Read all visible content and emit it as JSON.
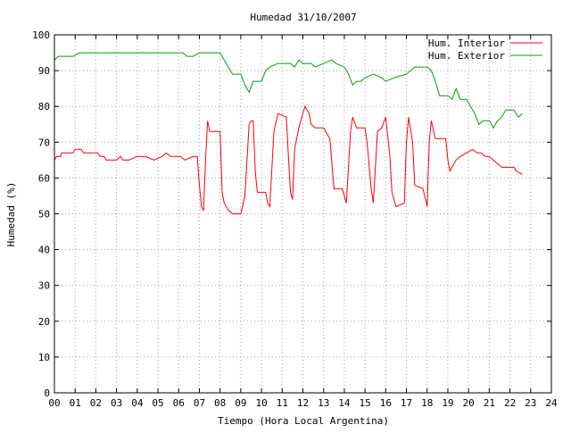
{
  "chart_data": {
    "type": "line",
    "title": "Humedad 31/10/2007",
    "xlabel": "Tiempo (Hora Local Argentina)",
    "ylabel": "Humedad (%)",
    "xlim": [
      0,
      24
    ],
    "ylim": [
      0,
      100
    ],
    "xticks": [
      "00",
      "01",
      "02",
      "03",
      "04",
      "05",
      "06",
      "07",
      "08",
      "09",
      "10",
      "11",
      "12",
      "13",
      "14",
      "15",
      "16",
      "17",
      "18",
      "19",
      "20",
      "21",
      "22",
      "23",
      "24"
    ],
    "yticks": [
      "0",
      "10",
      "20",
      "30",
      "40",
      "50",
      "60",
      "70",
      "80",
      "90",
      "100"
    ],
    "grid": true,
    "legend_position": "top-right",
    "series": [
      {
        "name": "Hum. Interior",
        "color": "#ff0000",
        "points": [
          [
            0,
            65
          ],
          [
            0.1,
            66
          ],
          [
            0.3,
            66
          ],
          [
            0.35,
            67
          ],
          [
            0.6,
            67
          ],
          [
            0.9,
            67
          ],
          [
            1.0,
            68
          ],
          [
            1.3,
            68
          ],
          [
            1.4,
            67
          ],
          [
            2.1,
            67
          ],
          [
            2.2,
            66
          ],
          [
            2.4,
            66
          ],
          [
            2.5,
            65
          ],
          [
            3.0,
            65
          ],
          [
            3.2,
            66
          ],
          [
            3.3,
            65
          ],
          [
            3.6,
            65
          ],
          [
            4.0,
            66
          ],
          [
            4.4,
            66
          ],
          [
            4.8,
            65
          ],
          [
            5.2,
            66
          ],
          [
            5.4,
            67
          ],
          [
            5.6,
            66
          ],
          [
            6.1,
            66
          ],
          [
            6.3,
            65
          ],
          [
            6.7,
            66
          ],
          [
            6.9,
            66
          ],
          [
            7.0,
            58
          ],
          [
            7.1,
            52
          ],
          [
            7.2,
            51
          ],
          [
            7.3,
            65
          ],
          [
            7.4,
            76
          ],
          [
            7.5,
            73
          ],
          [
            7.8,
            73
          ],
          [
            8.0,
            73
          ],
          [
            8.1,
            56
          ],
          [
            8.2,
            53
          ],
          [
            8.4,
            51
          ],
          [
            8.6,
            50
          ],
          [
            9.0,
            50
          ],
          [
            9.2,
            55
          ],
          [
            9.4,
            75
          ],
          [
            9.5,
            76
          ],
          [
            9.6,
            76
          ],
          [
            9.7,
            62
          ],
          [
            9.8,
            56
          ],
          [
            10.2,
            56
          ],
          [
            10.3,
            53
          ],
          [
            10.4,
            52
          ],
          [
            10.6,
            73
          ],
          [
            10.8,
            78
          ],
          [
            11.2,
            77
          ],
          [
            11.3,
            66
          ],
          [
            11.4,
            56
          ],
          [
            11.5,
            54
          ],
          [
            11.6,
            68
          ],
          [
            11.8,
            74
          ],
          [
            12.0,
            78
          ],
          [
            12.1,
            80
          ],
          [
            12.3,
            78
          ],
          [
            12.4,
            75
          ],
          [
            12.6,
            74
          ],
          [
            13.0,
            74
          ],
          [
            13.1,
            73
          ],
          [
            13.3,
            71
          ],
          [
            13.5,
            57
          ],
          [
            13.9,
            57
          ],
          [
            14.1,
            53
          ],
          [
            14.3,
            73
          ],
          [
            14.4,
            77
          ],
          [
            14.6,
            74
          ],
          [
            15.0,
            74
          ],
          [
            15.1,
            70
          ],
          [
            15.3,
            57
          ],
          [
            15.4,
            53
          ],
          [
            15.6,
            73
          ],
          [
            15.8,
            74
          ],
          [
            16.0,
            77
          ],
          [
            16.2,
            66
          ],
          [
            16.3,
            56
          ],
          [
            16.5,
            52
          ],
          [
            16.9,
            53
          ],
          [
            17.0,
            70
          ],
          [
            17.1,
            77
          ],
          [
            17.3,
            70
          ],
          [
            17.4,
            58
          ],
          [
            17.8,
            57
          ],
          [
            18.0,
            52
          ],
          [
            18.1,
            70
          ],
          [
            18.2,
            76
          ],
          [
            18.4,
            71
          ],
          [
            18.9,
            71
          ],
          [
            19.0,
            65
          ],
          [
            19.1,
            62
          ],
          [
            19.4,
            65
          ],
          [
            19.6,
            66
          ],
          [
            19.9,
            67
          ],
          [
            20.2,
            68
          ],
          [
            20.4,
            67
          ],
          [
            20.6,
            67
          ],
          [
            20.8,
            66
          ],
          [
            21.0,
            66
          ],
          [
            21.2,
            65
          ],
          [
            21.4,
            64
          ],
          [
            21.6,
            63
          ],
          [
            22.2,
            63
          ],
          [
            22.3,
            62
          ],
          [
            22.6,
            61
          ]
        ]
      },
      {
        "name": "Hum. Exterior",
        "color": "#00a000",
        "points": [
          [
            0,
            93
          ],
          [
            0.2,
            94
          ],
          [
            0.9,
            94
          ],
          [
            1.2,
            95
          ],
          [
            2.0,
            95
          ],
          [
            4.0,
            95
          ],
          [
            6.2,
            95
          ],
          [
            6.4,
            94
          ],
          [
            6.7,
            94
          ],
          [
            7.0,
            95
          ],
          [
            8.0,
            95
          ],
          [
            8.2,
            93
          ],
          [
            8.4,
            91
          ],
          [
            8.6,
            89
          ],
          [
            9.0,
            89
          ],
          [
            9.2,
            86
          ],
          [
            9.4,
            84
          ],
          [
            9.6,
            87
          ],
          [
            10.0,
            87
          ],
          [
            10.2,
            90
          ],
          [
            10.4,
            91
          ],
          [
            10.8,
            92
          ],
          [
            11.4,
            92
          ],
          [
            11.6,
            91
          ],
          [
            11.8,
            93
          ],
          [
            12.0,
            92
          ],
          [
            12.4,
            92
          ],
          [
            12.6,
            91
          ],
          [
            13.0,
            92
          ],
          [
            13.4,
            93
          ],
          [
            13.6,
            92
          ],
          [
            14.0,
            91
          ],
          [
            14.2,
            89
          ],
          [
            14.4,
            86
          ],
          [
            14.6,
            87
          ],
          [
            14.8,
            87
          ],
          [
            15.0,
            88
          ],
          [
            15.4,
            89
          ],
          [
            15.8,
            88
          ],
          [
            16.0,
            87
          ],
          [
            16.4,
            88
          ],
          [
            17.0,
            89
          ],
          [
            17.4,
            91
          ],
          [
            18.0,
            91
          ],
          [
            18.2,
            90
          ],
          [
            18.4,
            87
          ],
          [
            18.6,
            83
          ],
          [
            19.0,
            83
          ],
          [
            19.2,
            82
          ],
          [
            19.4,
            85
          ],
          [
            19.6,
            82
          ],
          [
            19.9,
            82
          ],
          [
            20.1,
            80
          ],
          [
            20.3,
            78
          ],
          [
            20.5,
            75
          ],
          [
            20.7,
            76
          ],
          [
            21.0,
            76
          ],
          [
            21.2,
            74
          ],
          [
            21.4,
            76
          ],
          [
            21.6,
            77
          ],
          [
            21.8,
            79
          ],
          [
            22.2,
            79
          ],
          [
            22.4,
            77
          ],
          [
            22.6,
            78
          ]
        ]
      }
    ]
  }
}
